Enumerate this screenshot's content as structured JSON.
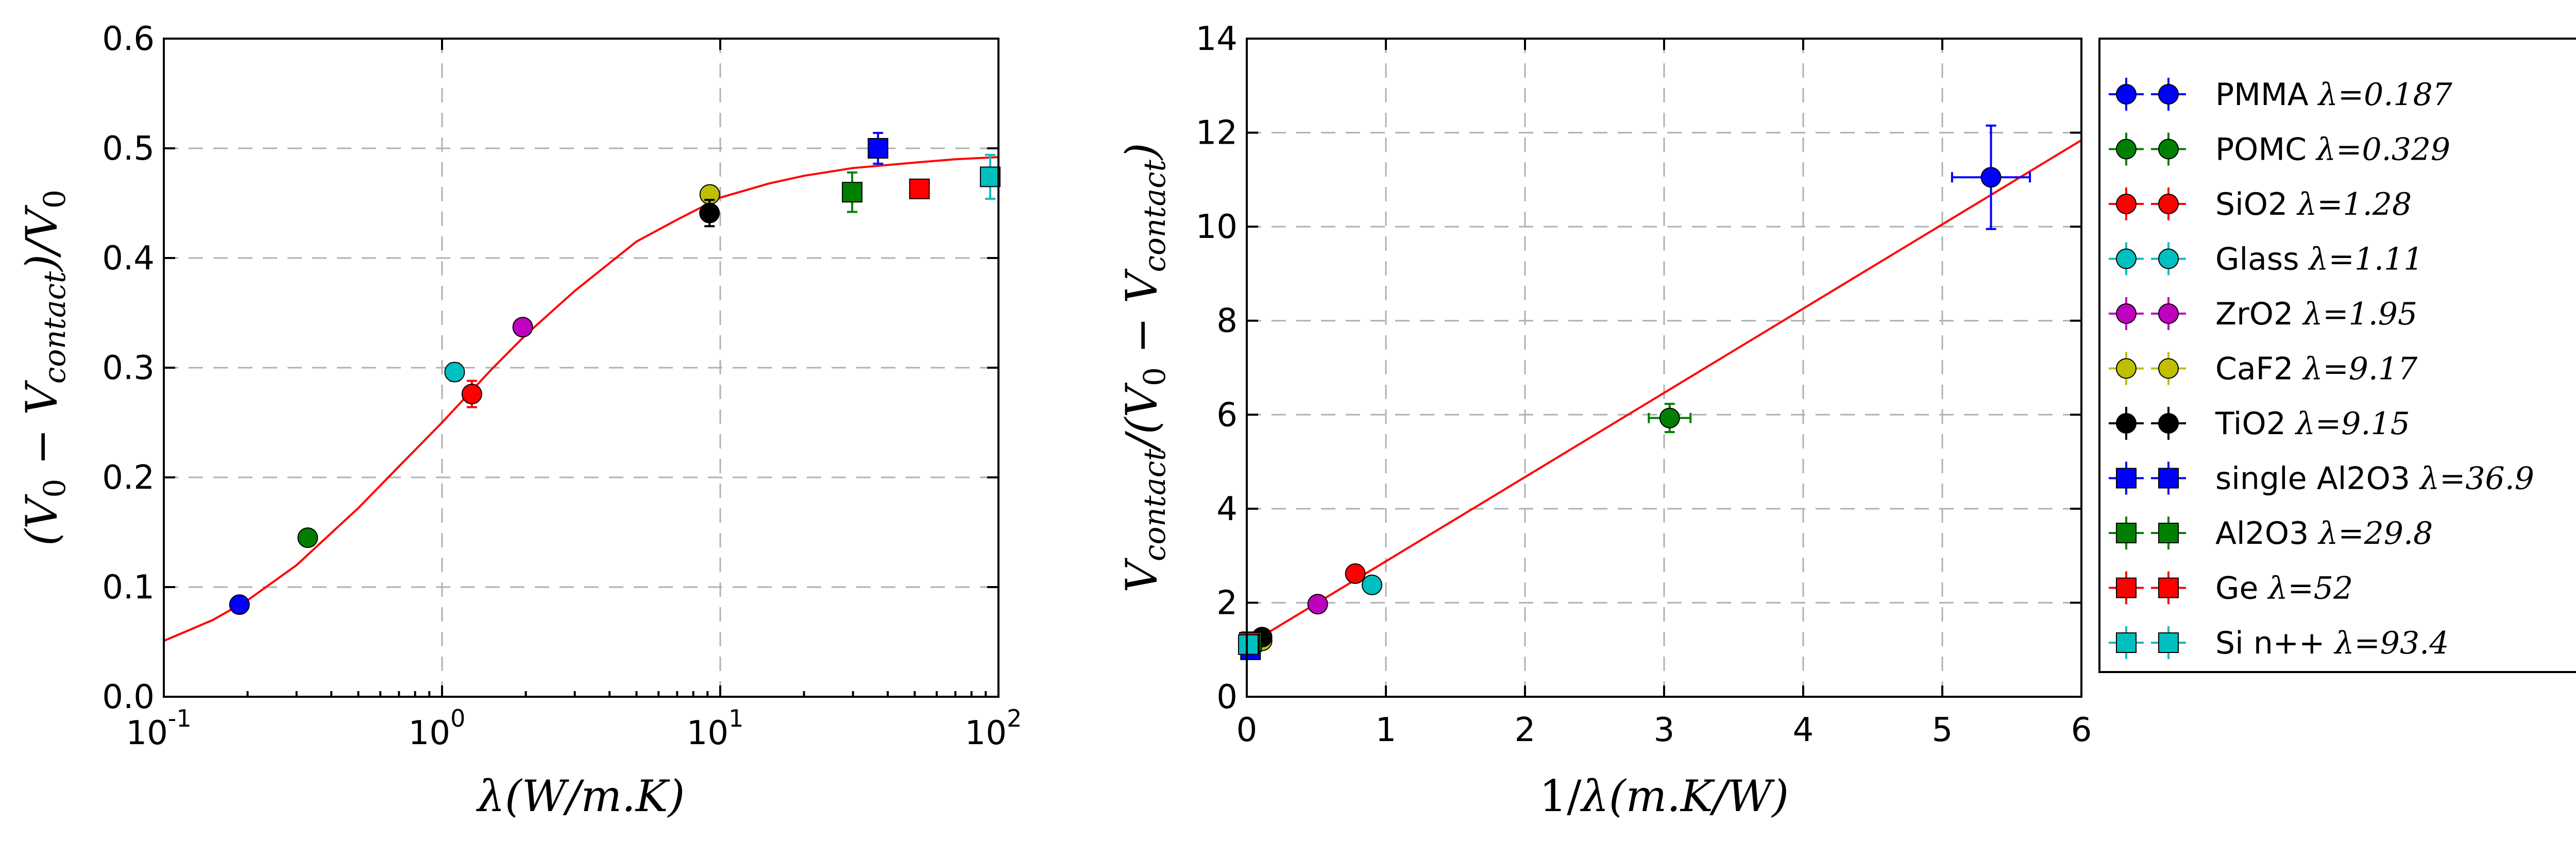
{
  "chart_data": [
    {
      "type": "scatter",
      "xscale": "log",
      "xlabel": "λ(W/m.K)",
      "ylabel": "(V0 − Vcontact)/V0",
      "xlim": [
        0.1,
        100
      ],
      "ylim": [
        0.0,
        0.6
      ],
      "grid": true,
      "x_ticks": [
        0.1,
        1,
        10,
        100
      ],
      "x_tick_labels": [
        {
          "base": "10",
          "exp": "-1"
        },
        {
          "base": "10",
          "exp": "0"
        },
        {
          "base": "10",
          "exp": "1"
        },
        {
          "base": "10",
          "exp": "2"
        }
      ],
      "y_ticks": [
        0.0,
        0.1,
        0.2,
        0.3,
        0.4,
        0.5,
        0.6
      ],
      "y_tick_labels": [
        "0.0",
        "0.1",
        "0.2",
        "0.3",
        "0.4",
        "0.5",
        "0.6"
      ],
      "points": [
        {
          "x": 0.187,
          "y": 0.084,
          "yerr": 0.005,
          "series": 0
        },
        {
          "x": 0.329,
          "y": 0.145,
          "yerr": 0.004,
          "series": 1
        },
        {
          "x": 1.28,
          "y": 0.276,
          "yerr": 0.012,
          "series": 2
        },
        {
          "x": 1.11,
          "y": 0.296,
          "yerr": 0.008,
          "series": 3
        },
        {
          "x": 1.95,
          "y": 0.337,
          "yerr": 0.005,
          "series": 4
        },
        {
          "x": 9.17,
          "y": 0.458,
          "yerr": 0.007,
          "series": 5
        },
        {
          "x": 9.15,
          "y": 0.441,
          "yerr": 0.012,
          "series": 6
        },
        {
          "x": 36.9,
          "y": 0.5,
          "yerr": 0.014,
          "series": 7
        },
        {
          "x": 29.8,
          "y": 0.46,
          "yerr": 0.018,
          "series": 8
        },
        {
          "x": 52,
          "y": 0.463,
          "yerr": 0.006,
          "series": 9
        },
        {
          "x": 93.4,
          "y": 0.474,
          "yerr": 0.02,
          "series": 10
        }
      ],
      "fit_curve": {
        "color": "#ff0000",
        "x": [
          0.1,
          0.15,
          0.2,
          0.3,
          0.5,
          0.7,
          1,
          1.5,
          2,
          3,
          5,
          7,
          10,
          15,
          20,
          30,
          50,
          70,
          100
        ],
        "y": [
          0.051,
          0.07,
          0.088,
          0.12,
          0.172,
          0.21,
          0.25,
          0.298,
          0.33,
          0.37,
          0.415,
          0.435,
          0.455,
          0.468,
          0.475,
          0.482,
          0.487,
          0.49,
          0.492
        ]
      }
    },
    {
      "type": "scatter",
      "xlabel": "1/λ(m.K/W)",
      "ylabel": "Vcontact/(V0 − Vcontact)",
      "xlim": [
        0,
        6
      ],
      "ylim": [
        0,
        14
      ],
      "grid": true,
      "x_ticks": [
        0,
        1,
        2,
        3,
        4,
        5,
        6
      ],
      "x_tick_labels": [
        "0",
        "1",
        "2",
        "3",
        "4",
        "5",
        "6"
      ],
      "y_ticks": [
        0,
        2,
        4,
        6,
        8,
        10,
        12,
        14
      ],
      "y_tick_labels": [
        "0",
        "2",
        "4",
        "6",
        "8",
        "10",
        "12",
        "14"
      ],
      "points": [
        {
          "x": 5.35,
          "y": 11.05,
          "xerr": 0.28,
          "yerr": 1.1,
          "series": 0
        },
        {
          "x": 3.04,
          "y": 5.93,
          "xerr": 0.15,
          "yerr": 0.3,
          "series": 1
        },
        {
          "x": 0.78,
          "y": 2.62,
          "xerr": 0.03,
          "yerr": 0.08,
          "series": 2
        },
        {
          "x": 0.9,
          "y": 2.38,
          "xerr": 0.03,
          "yerr": 0.08,
          "series": 3
        },
        {
          "x": 0.51,
          "y": 1.97,
          "xerr": 0.02,
          "yerr": 0.05,
          "series": 4
        },
        {
          "x": 0.11,
          "y": 1.19,
          "xerr": 0.01,
          "yerr": 0.05,
          "series": 5
        },
        {
          "x": 0.11,
          "y": 1.27,
          "xerr": 0.01,
          "yerr": 0.06,
          "series": 6
        },
        {
          "x": 0.027,
          "y": 1.0,
          "xerr": 0.005,
          "yerr": 0.05,
          "series": 7
        },
        {
          "x": 0.034,
          "y": 1.17,
          "xerr": 0.005,
          "yerr": 0.08,
          "series": 8
        },
        {
          "x": 0.019,
          "y": 1.16,
          "xerr": 0.003,
          "yerr": 0.03,
          "series": 9
        },
        {
          "x": 0.011,
          "y": 1.11,
          "xerr": 0.002,
          "yerr": 0.05,
          "series": 10
        }
      ],
      "fit_line": {
        "color": "#ff0000",
        "x": [
          0,
          6
        ],
        "y": [
          1.09,
          11.84
        ]
      }
    }
  ],
  "legend": {
    "placement": "right of second plot",
    "entries": [
      {
        "name": "PMMA",
        "lambda_label": "λ=0.187",
        "color": "#0000ff",
        "marker": "circle"
      },
      {
        "name": "POMC",
        "lambda_label": "λ=0.329",
        "color": "#007f00",
        "marker": "circle"
      },
      {
        "name": "SiO2",
        "lambda_label": "λ=1.28",
        "color": "#ff0000",
        "marker": "circle"
      },
      {
        "name": "Glass",
        "lambda_label": "λ=1.11",
        "color": "#00bfbf",
        "marker": "circle"
      },
      {
        "name": "ZrO2",
        "lambda_label": "λ=1.95",
        "color": "#bf00bf",
        "marker": "circle"
      },
      {
        "name": "CaF2",
        "lambda_label": "λ=9.17",
        "color": "#bfbf00",
        "marker": "circle"
      },
      {
        "name": "TiO2",
        "lambda_label": "λ=9.15",
        "color": "#000000",
        "marker": "circle"
      },
      {
        "name": "single Al2O3",
        "lambda_label": "λ=36.9",
        "color": "#0000ff",
        "marker": "square"
      },
      {
        "name": "Al2O3",
        "lambda_label": "λ=29.8",
        "color": "#007f00",
        "marker": "square"
      },
      {
        "name": "Ge",
        "lambda_label": "λ=52",
        "color": "#ff0000",
        "marker": "square"
      },
      {
        "name": "Si n++",
        "lambda_label": "λ=93.4",
        "color": "#00bfbf",
        "marker": "square"
      }
    ]
  }
}
